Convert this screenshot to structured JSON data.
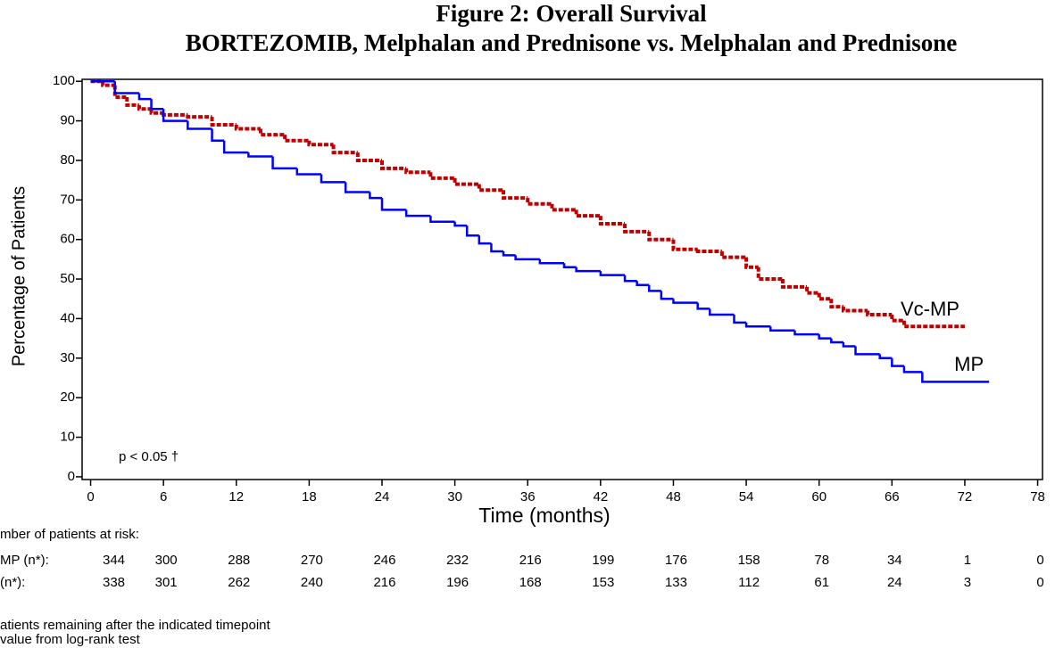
{
  "chart_data": {
    "type": "step",
    "title": "Figure 2: Overall Survival",
    "subtitle": "BORTEZOMIB, Melphalan and Prednisone vs. Melphalan and Prednisone",
    "x_label": "Time (months)",
    "y_label": "Percentage of Patients",
    "annotation": "p < 0.05 †",
    "xlim": [
      -0.7,
      78.4
    ],
    "ylim": [
      -0.7,
      100.5
    ],
    "xticks": [
      0,
      6,
      12,
      18,
      24,
      30,
      36,
      42,
      48,
      54,
      60,
      66,
      72,
      78
    ],
    "yticks": [
      0,
      10,
      20,
      30,
      40,
      50,
      60,
      70,
      80,
      90,
      100
    ],
    "series": [
      {
        "name": "Vc-MP",
        "color": "#c00000",
        "dashed": true,
        "x": [
          0,
          1,
          2,
          3,
          4,
          5,
          6,
          8,
          10,
          12,
          14,
          16,
          18,
          20,
          22,
          24,
          26,
          28,
          30,
          32,
          34,
          36,
          38,
          40,
          42,
          44,
          46,
          48,
          50,
          52,
          54,
          55,
          57,
          59,
          60,
          61,
          62,
          64,
          66,
          67,
          72
        ],
        "values": [
          100,
          99,
          96,
          94,
          93,
          92,
          91.5,
          91,
          89,
          88,
          86.5,
          85,
          84,
          82,
          80,
          78,
          77,
          75.5,
          74,
          72.5,
          70.5,
          69,
          67.5,
          66,
          64,
          62,
          60,
          57.5,
          57,
          55.5,
          53,
          50,
          48,
          46.5,
          45,
          43,
          42,
          41,
          39.5,
          38,
          38
        ]
      },
      {
        "name": "MP",
        "color": "#0000ff",
        "dashed": false,
        "x": [
          0,
          2,
          4,
          5,
          6,
          8,
          10,
          11,
          13,
          15,
          17,
          19,
          21,
          23,
          24,
          26,
          28,
          30,
          31,
          32,
          33,
          34,
          35,
          37,
          39,
          40,
          42,
          44,
          45,
          46,
          47,
          48,
          50,
          51,
          53,
          54,
          56,
          58,
          60,
          61,
          62,
          63,
          65,
          66,
          67,
          68.5,
          74
        ],
        "values": [
          100,
          97,
          95.5,
          93,
          90,
          88,
          85,
          82,
          81,
          78,
          76.5,
          74.5,
          72,
          70.5,
          67.5,
          66,
          64.5,
          63.5,
          61,
          59,
          57,
          56,
          55,
          54,
          53,
          52,
          51,
          49.5,
          48.5,
          47,
          45,
          44,
          42.5,
          41,
          39,
          38,
          37,
          36,
          35,
          34,
          33,
          31,
          30,
          28,
          26.5,
          24,
          24
        ]
      }
    ],
    "risk_table": {
      "title": "mber of patients at risk:",
      "rows": [
        {
          "label": "MP (n*):",
          "values": [
            344,
            300,
            288,
            270,
            246,
            232,
            216,
            199,
            176,
            158,
            78,
            34,
            1,
            0
          ]
        },
        {
          "label": "(n*):",
          "values": [
            338,
            301,
            262,
            240,
            216,
            196,
            168,
            153,
            133,
            112,
            61,
            24,
            3,
            0
          ]
        }
      ]
    },
    "footnotes": [
      "atients remaining after the indicated timepoint",
      "value from log-rank test"
    ]
  }
}
